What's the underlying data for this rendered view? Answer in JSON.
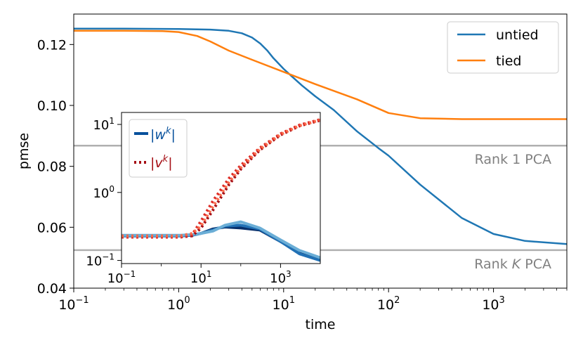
{
  "chart_data": [
    {
      "type": "line",
      "xlabel": "time",
      "ylabel": "pmse",
      "xscale": "log",
      "xlim": [
        0.1,
        5000
      ],
      "ylim": [
        0.04,
        0.13
      ],
      "xticks": [
        {
          "value": 0.1,
          "base": "10",
          "exp": "−1"
        },
        {
          "value": 1,
          "base": "10",
          "exp": "0"
        },
        {
          "value": 10,
          "base": "10",
          "exp": "1"
        },
        {
          "value": 100,
          "base": "10",
          "exp": "2"
        },
        {
          "value": 1000,
          "base": "10",
          "exp": "3"
        }
      ],
      "yticks": [
        {
          "value": 0.04,
          "label": "0.04"
        },
        {
          "value": 0.06,
          "label": "0.06"
        },
        {
          "value": 0.08,
          "label": "0.08"
        },
        {
          "value": 0.1,
          "label": "0.10"
        },
        {
          "value": 0.12,
          "label": "0.12"
        }
      ],
      "grid": false,
      "legend_position": "top-right",
      "series": [
        {
          "name": "untied",
          "color": "#1f77b4",
          "x": [
            0.1,
            0.3,
            1,
            2,
            3,
            4,
            5,
            6,
            7,
            8,
            10,
            12,
            15,
            20,
            30,
            50,
            80,
            100,
            200,
            500,
            1000,
            2000,
            5000
          ],
          "y": [
            0.1252,
            0.1252,
            0.1251,
            0.1249,
            0.1245,
            0.1237,
            0.1223,
            0.1203,
            0.118,
            0.1155,
            0.112,
            0.1095,
            0.1065,
            0.103,
            0.0985,
            0.0915,
            0.086,
            0.0835,
            0.074,
            0.063,
            0.0578,
            0.0555,
            0.0545
          ]
        },
        {
          "name": "tied",
          "color": "#ff7f0e",
          "x": [
            0.1,
            0.3,
            0.7,
            1,
            1.5,
            2,
            3,
            5,
            10,
            20,
            50,
            100,
            200,
            500,
            1000,
            5000
          ],
          "y": [
            0.1245,
            0.1245,
            0.1244,
            0.1241,
            0.1228,
            0.121,
            0.118,
            0.115,
            0.111,
            0.107,
            0.102,
            0.0975,
            0.0958,
            0.0955,
            0.0955,
            0.0955
          ]
        }
      ],
      "reference_lines": [
        {
          "y": 0.0868,
          "label_prefix": "Rank 1 PCA",
          "label_var": "",
          "label_suffix": "",
          "color": "#b0b0b0"
        },
        {
          "y": 0.0525,
          "label_prefix": "Rank ",
          "label_var": "K",
          "label_suffix": " PCA",
          "color": "#b0b0b0"
        }
      ]
    },
    {
      "type": "line",
      "xscale": "log",
      "yscale": "log",
      "xlim": [
        0.1,
        10000
      ],
      "ylim": [
        0.09,
        15
      ],
      "xticks": [
        {
          "value": 0.1,
          "base": "10",
          "exp": "−1"
        },
        {
          "value": 10,
          "base": "10",
          "exp": "1"
        },
        {
          "value": 1000,
          "base": "10",
          "exp": "3"
        }
      ],
      "yticks": [
        {
          "value": 0.1,
          "base": "10",
          "exp": "−1"
        },
        {
          "value": 1,
          "base": "10",
          "exp": "0"
        },
        {
          "value": 10,
          "base": "10",
          "exp": "1"
        }
      ],
      "legend_position": "top-left",
      "legend": [
        {
          "label": "|w",
          "sup": "k",
          "end": "|",
          "style": "solid",
          "color": "#08519c"
        },
        {
          "label": "|v",
          "sup": "k",
          "end": "|",
          "style": "dotted",
          "color": "#a50f15"
        }
      ],
      "series": [
        {
          "style": "solid",
          "color": "#08306b",
          "x": [
            0.1,
            1,
            3,
            6,
            10,
            20,
            40,
            100,
            300,
            1000,
            3000,
            10000
          ],
          "y": [
            0.23,
            0.23,
            0.23,
            0.235,
            0.25,
            0.29,
            0.31,
            0.3,
            0.28,
            0.19,
            0.13,
            0.105
          ]
        },
        {
          "style": "solid",
          "color": "#2171b5",
          "x": [
            0.1,
            1,
            3,
            6,
            10,
            20,
            40,
            100,
            300,
            1000,
            3000,
            10000
          ],
          "y": [
            0.23,
            0.23,
            0.23,
            0.235,
            0.25,
            0.28,
            0.32,
            0.33,
            0.29,
            0.19,
            0.125,
            0.1
          ]
        },
        {
          "style": "solid",
          "color": "#6baed6",
          "x": [
            0.1,
            1,
            3,
            6,
            10,
            20,
            40,
            100,
            300,
            1000,
            3000,
            10000
          ],
          "y": [
            0.235,
            0.235,
            0.235,
            0.24,
            0.25,
            0.27,
            0.33,
            0.37,
            0.3,
            0.2,
            0.14,
            0.11
          ]
        },
        {
          "style": "dotted",
          "color": "#a50f15",
          "x": [
            0.1,
            1,
            3,
            6,
            10,
            20,
            50,
            100,
            300,
            1000,
            3000,
            10000
          ],
          "y": [
            0.22,
            0.22,
            0.22,
            0.23,
            0.3,
            0.55,
            1.3,
            2.2,
            4.2,
            7.0,
            9.5,
            11.5
          ]
        },
        {
          "style": "dotted",
          "color": "#de2d26",
          "x": [
            0.1,
            1,
            3,
            6,
            10,
            20,
            50,
            100,
            300,
            1000,
            3000,
            10000
          ],
          "y": [
            0.22,
            0.22,
            0.22,
            0.24,
            0.38,
            0.75,
            1.6,
            2.5,
            4.5,
            7.3,
            9.8,
            11.8
          ]
        },
        {
          "style": "dotted",
          "color": "#fb6a4a",
          "x": [
            0.1,
            1,
            3,
            6,
            10,
            20,
            50,
            100,
            300,
            1000,
            3000,
            10000
          ],
          "y": [
            0.23,
            0.23,
            0.23,
            0.25,
            0.32,
            0.62,
            1.4,
            2.3,
            4.3,
            7.1,
            9.6,
            11.6
          ]
        }
      ]
    }
  ]
}
